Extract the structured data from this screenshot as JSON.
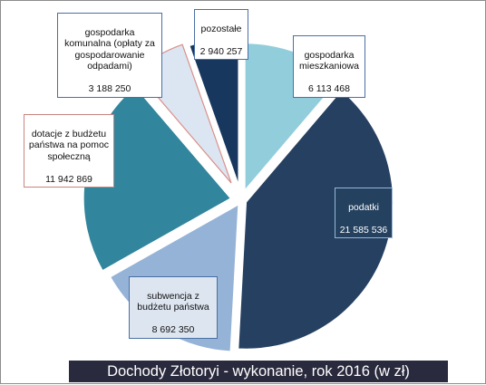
{
  "chart_data": {
    "type": "pie",
    "title": "Dochody Złotoryi - wykonanie, rok 2016 (w zł)",
    "categories": [
      "gospodarka mieszkaniowa",
      "podatki",
      "subwencja z budżetu państwa",
      "dotacje z budżetu państwa na pomoc społeczną",
      "gospodarka komunalna (opłaty za gospodarowanie odpadami)",
      "pozostałe"
    ],
    "values": [
      6113468,
      21585536,
      8692350,
      11942869,
      3188250,
      2940257
    ],
    "value_labels": [
      "6 113 468",
      "21 585 536",
      "8 692 350",
      "11 942 869",
      "3 188 250",
      "2 940 257"
    ],
    "colors": [
      "#92cddc",
      "#254061",
      "#95b3d7",
      "#31859c",
      "#dce6f2",
      "#17375e"
    ],
    "legend": "none"
  }
}
